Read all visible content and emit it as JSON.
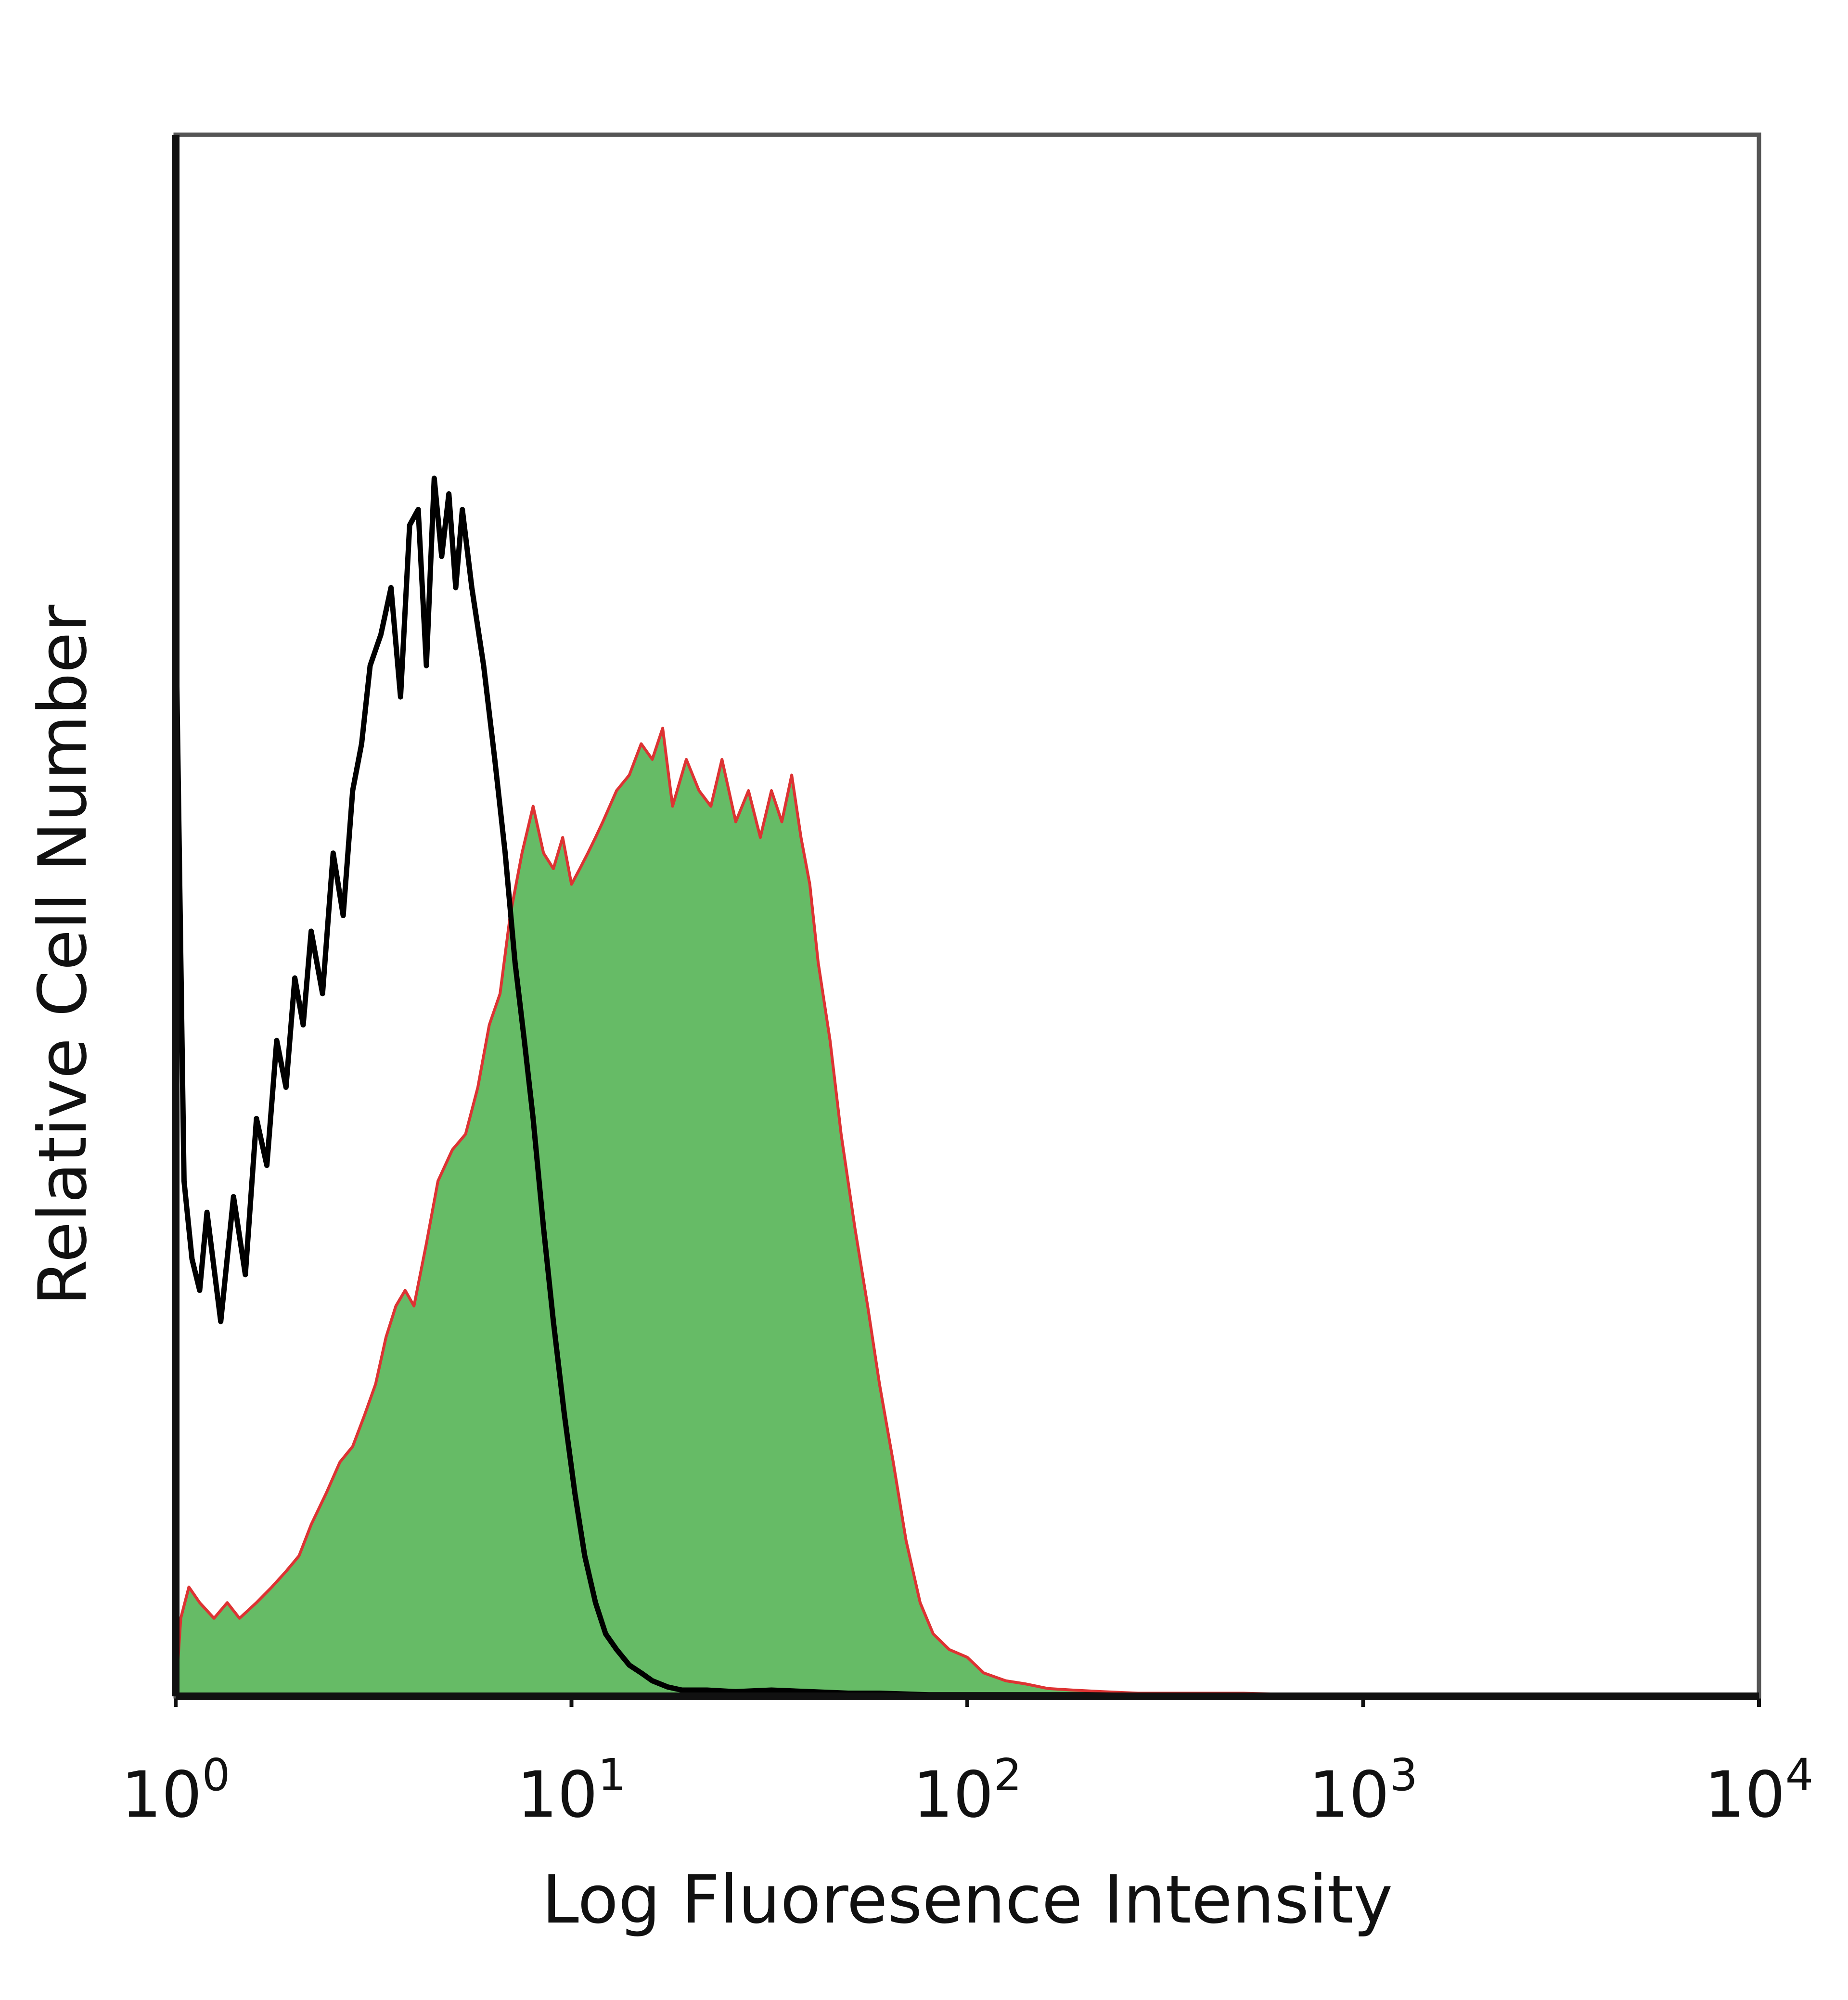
{
  "chart_data": {
    "type": "area",
    "title": "",
    "xlabel": "Log Fluoresence Intensity",
    "ylabel": "Relative Cell Number",
    "x_scale": "log",
    "xlim": [
      1,
      10000
    ],
    "ylim": [
      0,
      100
    ],
    "grid": false,
    "legend": "none",
    "x_ticks": [
      {
        "value": 1,
        "base": "10",
        "exp": "0"
      },
      {
        "value": 10,
        "base": "10",
        "exp": "1"
      },
      {
        "value": 100,
        "base": "10",
        "exp": "2"
      },
      {
        "value": 1000,
        "base": "10",
        "exp": "3"
      },
      {
        "value": 10000,
        "base": "10",
        "exp": "4"
      }
    ],
    "series": [
      {
        "style": "line",
        "color": "#000000",
        "x": [
          1.0,
          1.05,
          1.1,
          1.15,
          1.2,
          1.3,
          1.4,
          1.5,
          1.6,
          1.7,
          1.8,
          1.9,
          2.0,
          2.1,
          2.2,
          2.35,
          2.5,
          2.65,
          2.8,
          2.95,
          3.1,
          3.3,
          3.5,
          3.7,
          3.9,
          4.1,
          4.3,
          4.5,
          4.7,
          4.9,
          5.1,
          5.3,
          5.6,
          6.0,
          6.4,
          6.8,
          7.2,
          7.6,
          8.0,
          8.5,
          9.0,
          9.6,
          10.2,
          10.8,
          11.5,
          12.2,
          13.0,
          14.0,
          15.0,
          16.0,
          17.5,
          19.0,
          22.0,
          26.0,
          32.0,
          40.0,
          50.0,
          60.0,
          80.0,
          120.0,
          200.0,
          400.0,
          1000.0
        ],
        "y": [
          70,
          33,
          28,
          26,
          31,
          24,
          32,
          27,
          37,
          34,
          42,
          39,
          46,
          43,
          49,
          45,
          54,
          50,
          58,
          61,
          66,
          68,
          71,
          64,
          75,
          76,
          66,
          78,
          73,
          77,
          71,
          76,
          71,
          66,
          60,
          54,
          47,
          42,
          37,
          30,
          24,
          18,
          13,
          9,
          6,
          4,
          3,
          2,
          1.5,
          1,
          0.6,
          0.4,
          0.4,
          0.3,
          0.4,
          0.3,
          0.2,
          0.2,
          0.1,
          0.1,
          0.1,
          0,
          0
        ]
      },
      {
        "style": "filled",
        "fill": "#66bb66",
        "color": "#dd3333",
        "x": [
          1.0,
          1.03,
          1.08,
          1.15,
          1.25,
          1.35,
          1.45,
          1.6,
          1.75,
          1.9,
          2.05,
          2.2,
          2.4,
          2.6,
          2.8,
          3.0,
          3.2,
          3.4,
          3.6,
          3.8,
          4.0,
          4.3,
          4.6,
          5.0,
          5.4,
          5.8,
          6.2,
          6.6,
          7.0,
          7.5,
          8.0,
          8.5,
          9.0,
          9.5,
          10.0,
          10.5,
          11.0,
          11.5,
          12.0,
          13.0,
          14.0,
          15.0,
          16.0,
          17.0,
          18.0,
          19.5,
          21.0,
          22.5,
          24.0,
          26.0,
          28.0,
          30.0,
          32.0,
          34.0,
          36.0,
          38.0,
          40.0,
          42.0,
          45.0,
          48.0,
          52.0,
          56.0,
          60.0,
          65.0,
          70.0,
          76.0,
          82.0,
          90.0,
          100.0,
          110.0,
          125.0,
          140.0,
          160.0,
          185.0,
          220.0,
          270.0,
          350.0,
          500.0,
          700.0,
          1000.0,
          1100.0
        ],
        "y": [
          0,
          5,
          7,
          6,
          5,
          6,
          5,
          6,
          7,
          8,
          9,
          11,
          13,
          15,
          16,
          18,
          20,
          23,
          25,
          26,
          25,
          29,
          33,
          35,
          36,
          39,
          43,
          45,
          50,
          54,
          57,
          54,
          53,
          55,
          52,
          53,
          54,
          55,
          56,
          58,
          59,
          61,
          60,
          62,
          57,
          60,
          58,
          57,
          60,
          56,
          58,
          55,
          58,
          56,
          59,
          55,
          52,
          47,
          42,
          36,
          30,
          25,
          20,
          15,
          10,
          6,
          4,
          3,
          2.5,
          1.5,
          1,
          0.8,
          0.5,
          0.4,
          0.3,
          0.2,
          0.2,
          0.2,
          0.1,
          0.1,
          0
        ]
      }
    ]
  }
}
